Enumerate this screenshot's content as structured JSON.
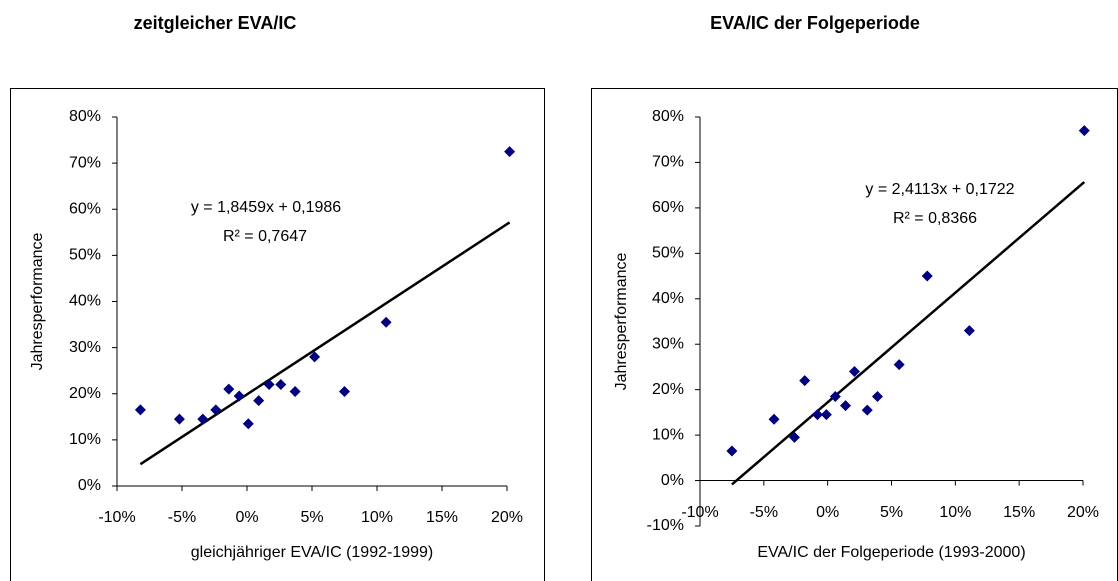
{
  "chart_data": [
    {
      "type": "scatter",
      "title": "zeitgleicher EVA/IC",
      "x_label": "gleichjähriger EVA/IC (1992-1999)",
      "y_label": "Jahresperformance",
      "color": "#000080",
      "x": [
        -8.2,
        -5.2,
        -3.4,
        -2.4,
        -1.4,
        -0.6,
        0.1,
        0.9,
        1.7,
        2.6,
        3.7,
        5.2,
        7.5,
        10.7,
        20.2
      ],
      "values": [
        16.5,
        14.5,
        14.5,
        16.5,
        21,
        19.5,
        13.5,
        18.5,
        22,
        22,
        20.5,
        28,
        20.5,
        35.5,
        72.5
      ],
      "xlim": [
        -10,
        20
      ],
      "xticks": [
        {
          "value": -10,
          "label": "-10%"
        },
        {
          "value": -5,
          "label": "-5%"
        },
        {
          "value": 0,
          "label": "0%"
        },
        {
          "value": 5,
          "label": "5%"
        },
        {
          "value": 10,
          "label": "10%"
        },
        {
          "value": 15,
          "label": "15%"
        },
        {
          "value": 20,
          "label": "20%"
        }
      ],
      "ylim": [
        0,
        80
      ],
      "yticks": [
        {
          "value": 0,
          "label": "0%"
        },
        {
          "value": 10,
          "label": "10%"
        },
        {
          "value": 20,
          "label": "20%"
        },
        {
          "value": 30,
          "label": "30%"
        },
        {
          "value": 40,
          "label": "40%"
        },
        {
          "value": 50,
          "label": "50%"
        },
        {
          "value": 60,
          "label": "60%"
        },
        {
          "value": 70,
          "label": "70%"
        },
        {
          "value": 80,
          "label": "80%"
        }
      ],
      "trendline": {
        "slope": 1.8459,
        "intercept": 19.86
      },
      "equation": "y = 1,8459x + 0,1986",
      "r_squared": "R² = 0,7647"
    },
    {
      "type": "scatter",
      "title": "EVA/IC der Folgeperiode",
      "x_label": "EVA/IC der Folgeperiode (1993-2000)",
      "y_label": "Jahresperformance",
      "color": "#000080",
      "x": [
        -7.5,
        -4.2,
        -2.6,
        -1.8,
        -0.8,
        -0.1,
        0.6,
        1.4,
        2.1,
        3.1,
        3.9,
        5.6,
        7.8,
        11.1,
        20.1
      ],
      "values": [
        6.5,
        13.5,
        9.5,
        22,
        14.5,
        14.5,
        18.5,
        16.5,
        24,
        15.5,
        18.5,
        25.5,
        45,
        33,
        77
      ],
      "xlim": [
        -10,
        20
      ],
      "xticks": [
        {
          "value": -10,
          "label": "-10%"
        },
        {
          "value": -5,
          "label": "-5%"
        },
        {
          "value": 0,
          "label": "0%"
        },
        {
          "value": 5,
          "label": "5%"
        },
        {
          "value": 10,
          "label": "10%"
        },
        {
          "value": 15,
          "label": "15%"
        },
        {
          "value": 20,
          "label": "20%"
        }
      ],
      "ylim": [
        -10,
        80
      ],
      "yticks": [
        {
          "value": -10,
          "label": "-10%"
        },
        {
          "value": 0,
          "label": "0%"
        },
        {
          "value": 10,
          "label": "10%"
        },
        {
          "value": 20,
          "label": "20%"
        },
        {
          "value": 30,
          "label": "30%"
        },
        {
          "value": 40,
          "label": "40%"
        },
        {
          "value": 50,
          "label": "50%"
        },
        {
          "value": 60,
          "label": "60%"
        },
        {
          "value": 70,
          "label": "70%"
        },
        {
          "value": 80,
          "label": "80%"
        }
      ],
      "trendline": {
        "slope": 2.4113,
        "intercept": 17.22
      },
      "equation": "y = 2,4113x + 0,1722",
      "r_squared": "R² = 0,8366"
    }
  ]
}
